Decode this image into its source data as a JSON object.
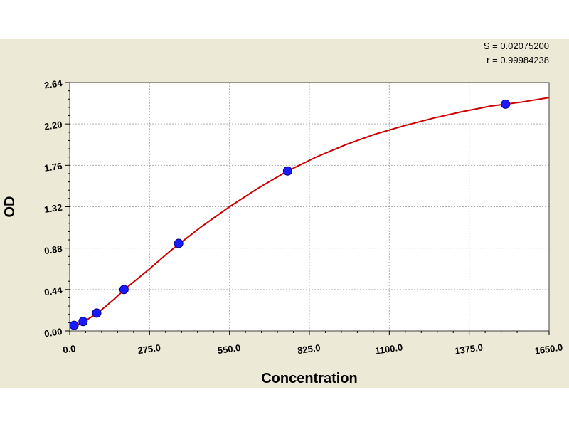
{
  "stats": {
    "s_text": "S = 0.02075200",
    "r_text": "r = 0.99984238"
  },
  "chart_data": {
    "type": "scatter",
    "title": "",
    "xlabel": "Concentration",
    "ylabel": "OD",
    "xlim": [
      0,
      1650
    ],
    "ylim": [
      0,
      2.64
    ],
    "x_ticks": [
      0,
      275,
      550,
      825,
      1100,
      1375,
      1650
    ],
    "x_tick_labels": [
      "0.0",
      "275.0",
      "550.0",
      "825.0",
      "1100.0",
      "1375.0",
      "1650.0"
    ],
    "y_ticks": [
      0,
      0.44,
      0.88,
      1.32,
      1.76,
      2.2,
      2.64
    ],
    "y_tick_labels": [
      "0.00",
      "0.44",
      "0.88",
      "1.32",
      "1.76",
      "2.20",
      "2.64"
    ],
    "grid": true,
    "series": [
      {
        "points": [
          {
            "x": 15,
            "y": 0.06
          },
          {
            "x": 46,
            "y": 0.1
          },
          {
            "x": 93,
            "y": 0.19
          },
          {
            "x": 187,
            "y": 0.44
          },
          {
            "x": 375,
            "y": 0.93
          },
          {
            "x": 750,
            "y": 1.7
          },
          {
            "x": 1500,
            "y": 2.41
          }
        ]
      }
    ],
    "fit_curve": {
      "x": [
        0,
        50,
        100,
        150,
        200,
        275,
        350,
        450,
        550,
        650,
        750,
        850,
        950,
        1050,
        1150,
        1250,
        1350,
        1450,
        1500,
        1550,
        1650
      ],
      "y": [
        0.03,
        0.1,
        0.2,
        0.33,
        0.47,
        0.66,
        0.86,
        1.1,
        1.32,
        1.52,
        1.7,
        1.85,
        1.98,
        2.09,
        2.18,
        2.26,
        2.33,
        2.39,
        2.41,
        2.43,
        2.48
      ]
    },
    "colors": {
      "point_fill": "#1a1aff",
      "point_stroke": "#000080",
      "curve": "#cc0000",
      "grid": "#b0b0b0",
      "plot_bg": "#ffffff",
      "panel_bg": "#ecead7"
    }
  }
}
